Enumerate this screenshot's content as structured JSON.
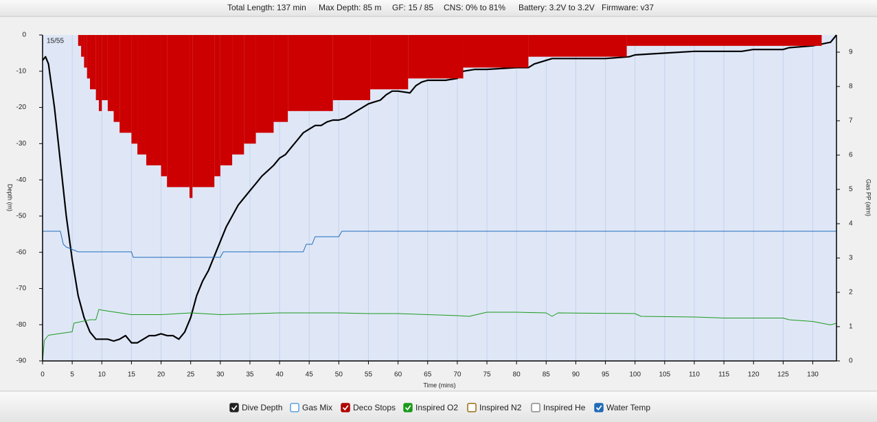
{
  "header": {
    "items": [
      "Total Length: 137 min",
      "Max Depth: 85 m",
      "GF: 15 / 85",
      "CNS: 0% to 81%",
      "Battery: 3.2V to 3.2V",
      "Firmware: v37"
    ]
  },
  "chart_data": {
    "type": "line",
    "annotation": "15/55",
    "x_label": "Time (mins)",
    "y_label": "Depth (m)",
    "y2_label": "Gas PP (atm)",
    "xlim": [
      0,
      134
    ],
    "xticks": [
      0,
      5,
      10,
      15,
      20,
      25,
      30,
      35,
      40,
      45,
      50,
      55,
      60,
      65,
      70,
      75,
      80,
      85,
      90,
      95,
      100,
      105,
      110,
      115,
      120,
      125,
      130
    ],
    "ylim": [
      -90,
      0
    ],
    "yticks": [
      0,
      -10,
      -20,
      -30,
      -40,
      -50,
      -60,
      -70,
      -80,
      -90
    ],
    "y2lim": [
      0,
      9.5
    ],
    "y2ticks": [
      0,
      1,
      2,
      3,
      4,
      5,
      6,
      7,
      8,
      9
    ],
    "grid": true,
    "series": [
      {
        "name": "Dive Depth",
        "color": "#000000",
        "x": [
          0,
          0.5,
          1,
          2,
          3,
          4,
          5,
          6,
          7,
          8,
          9,
          10,
          11,
          12,
          13,
          14,
          15,
          16,
          17,
          18,
          19,
          20,
          21,
          22,
          23,
          24,
          25,
          26,
          27,
          28,
          29,
          30,
          31,
          32,
          33,
          34,
          35,
          36,
          37,
          38,
          39,
          40,
          41,
          42,
          43,
          44,
          45,
          46,
          47,
          48,
          49,
          50,
          51,
          52,
          53,
          54,
          55,
          56,
          57,
          58,
          59,
          60,
          62,
          63,
          64,
          65,
          68,
          70,
          71,
          73,
          75,
          80,
          82,
          83,
          85,
          86,
          90,
          95,
          99,
          100,
          105,
          110,
          113,
          118,
          120,
          125,
          126,
          130,
          133,
          134
        ],
        "values": [
          -7,
          -6,
          -8,
          -20,
          -35,
          -50,
          -62,
          -72,
          -78,
          -82,
          -84,
          -84,
          -84,
          -84.5,
          -84,
          -83,
          -85,
          -85,
          -84,
          -83,
          -83,
          -82.5,
          -83,
          -83,
          -84,
          -82,
          -78,
          -72,
          -68,
          -65,
          -61,
          -57,
          -53,
          -50,
          -47,
          -45,
          -43,
          -41,
          -39,
          -37.5,
          -36,
          -34,
          -33,
          -31,
          -29,
          -27,
          -26,
          -25,
          -25,
          -24,
          -23.5,
          -23.5,
          -23,
          -22,
          -21,
          -20,
          -19,
          -18.5,
          -18,
          -16.5,
          -15.5,
          -15.5,
          -16,
          -14,
          -13,
          -12.5,
          -12.5,
          -12,
          -10,
          -9.5,
          -9.5,
          -9,
          -9,
          -8,
          -7,
          -6.5,
          -6.5,
          -6.5,
          -6,
          -5.5,
          -5,
          -4.5,
          -4.5,
          -4.5,
          -4,
          -4,
          -3.5,
          -3,
          -2,
          0
        ]
      },
      {
        "name": "Deco Stops",
        "color": "#cc0000",
        "fill": true,
        "x": [
          6,
          6.5,
          7,
          7.5,
          8,
          9,
          9.5,
          10,
          11,
          12,
          13,
          15,
          16,
          17.5,
          20,
          21,
          24.8,
          25.3,
          29,
          30,
          32,
          34,
          36,
          39,
          41.4,
          49,
          55.3,
          61.7,
          71,
          82,
          98.6,
          131.5
        ],
        "values": [
          -3,
          -6,
          -9,
          -12,
          -15,
          -18,
          -21,
          -18,
          -21,
          -24,
          -27,
          -30,
          -33,
          -36,
          -39,
          -42,
          -45,
          -42,
          -39,
          -36,
          -33,
          -30,
          -27,
          -24,
          -21,
          -18,
          -15,
          -12,
          -9,
          -6,
          -3,
          0
        ]
      },
      {
        "name": "Inspired O2",
        "color": "#1a9a1a",
        "axis": "y2",
        "x": [
          0,
          0.3,
          1,
          3,
          5,
          5.3,
          8,
          9,
          9.5,
          10,
          15,
          20,
          25,
          30,
          40,
          50,
          55,
          60,
          65,
          70,
          72,
          75,
          80,
          85,
          86,
          87,
          100,
          101,
          110,
          115,
          125,
          126,
          130,
          133,
          134
        ],
        "values": [
          0,
          0.6,
          0.75,
          0.8,
          0.85,
          1.1,
          1.2,
          1.2,
          1.5,
          1.48,
          1.35,
          1.35,
          1.4,
          1.35,
          1.4,
          1.4,
          1.38,
          1.38,
          1.35,
          1.32,
          1.3,
          1.42,
          1.42,
          1.4,
          1.3,
          1.4,
          1.38,
          1.3,
          1.28,
          1.25,
          1.25,
          1.2,
          1.15,
          1.05,
          1.1
        ]
      },
      {
        "name": "Water Temp",
        "color": "#1e6bb8",
        "axis": "y2",
        "x": [
          0,
          3,
          3.5,
          4,
          6,
          15,
          15.3,
          30,
          30.5,
          44,
          44.5,
          45.5,
          46,
          50,
          50.5,
          134
        ],
        "values": [
          3.78,
          3.78,
          3.4,
          3.32,
          3.18,
          3.18,
          3.02,
          3.02,
          3.18,
          3.18,
          3.4,
          3.4,
          3.62,
          3.62,
          3.78,
          3.78
        ]
      }
    ],
    "legend": [
      {
        "name": "Dive Depth",
        "color": "#222222",
        "checked": true
      },
      {
        "name": "Gas Mix",
        "color": "#5aa0e0",
        "checked": false
      },
      {
        "name": "Deco Stops",
        "color": "#b00000",
        "checked": true
      },
      {
        "name": "Inspired O2",
        "color": "#1a9a1a",
        "checked": true
      },
      {
        "name": "Inspired N2",
        "color": "#9a6a10",
        "checked": false
      },
      {
        "name": "Inspired He",
        "color": "#888888",
        "checked": false
      },
      {
        "name": "Water Temp",
        "color": "#1e6bb8",
        "checked": true
      }
    ]
  }
}
